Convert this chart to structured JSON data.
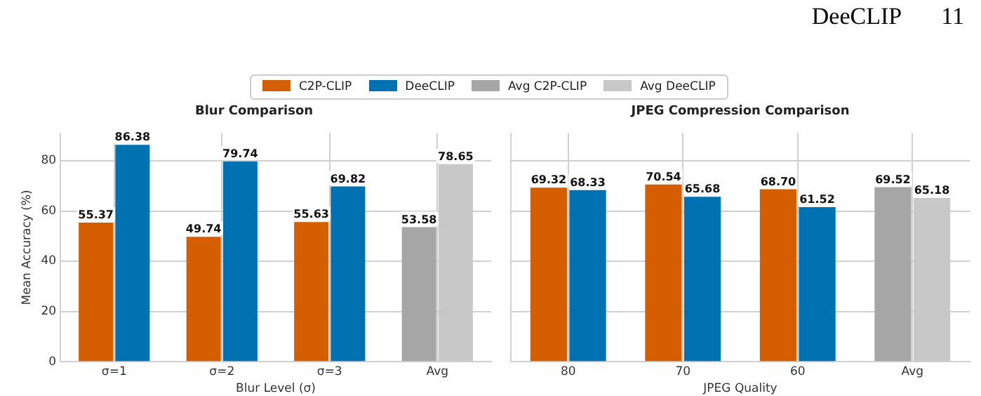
{
  "chart_data": [
    {
      "type": "bar",
      "title": "Blur Comparison",
      "xlabel": "Blur Level (σ)",
      "ylabel": "Mean Accuracy (%)",
      "annotations": [
        "DeeCLIP",
        "11"
      ],
      "categories": [
        "σ=1",
        "σ=2",
        "σ=3",
        "Avg"
      ],
      "series": [
        {
          "name": "C2P-CLIP",
          "color": "#d55e00",
          "values": [
            55.37,
            49.74,
            55.63,
            null
          ],
          "value_labels": [
            "55.37",
            "49.74",
            "55.63",
            null
          ]
        },
        {
          "name": "DeeCLIP",
          "color": "#0072b2",
          "values": [
            86.38,
            79.74,
            69.82,
            null
          ],
          "value_labels": [
            "86.38",
            "79.74",
            "69.82",
            null
          ]
        },
        {
          "name": "Avg C2P-CLIP",
          "color": "#a6a6a6",
          "values": [
            null,
            null,
            null,
            53.58
          ],
          "value_labels": [
            null,
            null,
            null,
            "53.58"
          ]
        },
        {
          "name": "Avg DeeCLIP",
          "color": "#c8c8c8",
          "values": [
            null,
            null,
            null,
            78.65
          ],
          "value_labels": [
            null,
            null,
            null,
            "78.65"
          ]
        }
      ],
      "ylim": [
        0,
        91
      ],
      "yticks": [
        0,
        20,
        40,
        60,
        80
      ],
      "grid": true,
      "legend": "top"
    },
    {
      "type": "bar",
      "title": "JPEG Compression Comparison",
      "xlabel": "JPEG Quality",
      "categories": [
        "80",
        "70",
        "60",
        "Avg"
      ],
      "series": [
        {
          "color": "#d55e00",
          "values": [
            69.32,
            70.54,
            68.7,
            null
          ],
          "value_labels": [
            "69.32",
            "70.54",
            "68.70",
            null
          ]
        },
        {
          "color": "#0072b2",
          "values": [
            68.33,
            65.68,
            61.52,
            null
          ],
          "value_labels": [
            "68.33",
            "65.68",
            "61.52",
            null
          ]
        },
        {
          "color": "#a6a6a6",
          "values": [
            null,
            null,
            null,
            69.52
          ],
          "value_labels": [
            null,
            null,
            null,
            "69.52"
          ]
        },
        {
          "color": "#c8c8c8",
          "values": [
            null,
            null,
            null,
            65.18
          ],
          "value_labels": [
            null,
            null,
            null,
            "65.18"
          ]
        }
      ],
      "ylim": [
        0,
        91
      ],
      "yticks": [
        0,
        20,
        40,
        60,
        80
      ],
      "grid": true,
      "tick_labels": "x"
    }
  ]
}
